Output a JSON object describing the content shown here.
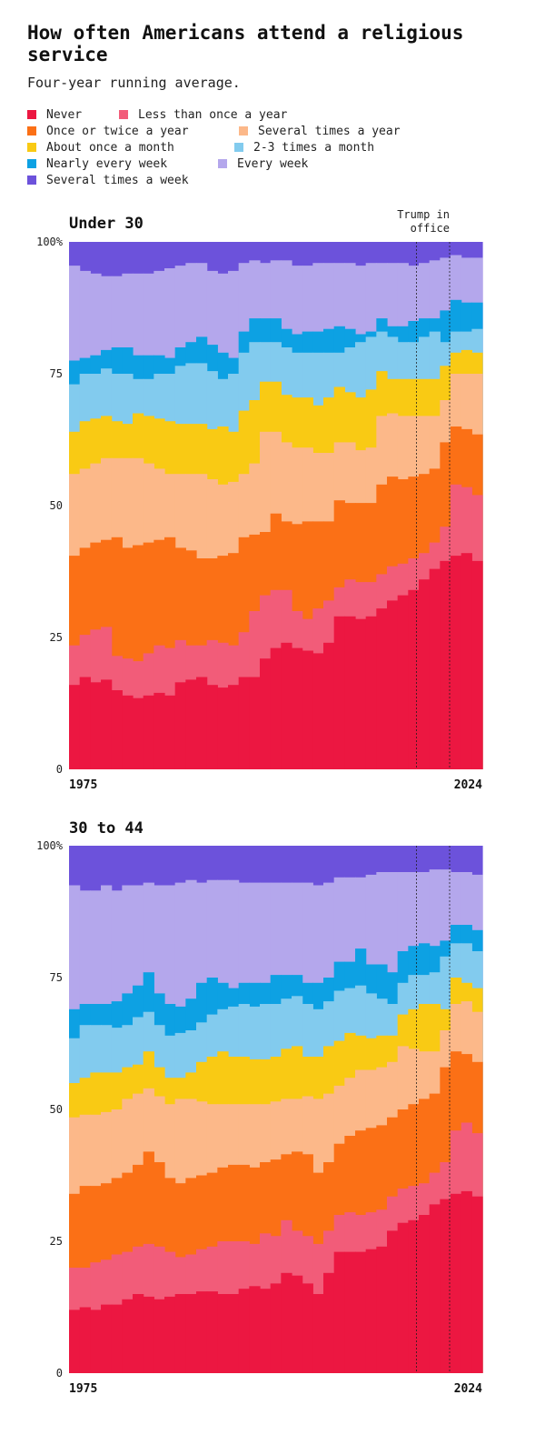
{
  "title": "How often Americans attend a religious service",
  "subtitle": "Four-year running average.",
  "legend": {
    "rows": [
      [
        {
          "label": "Never",
          "color": "#ec1741"
        },
        {
          "label": "Less than once a year",
          "color": "#f25c79"
        }
      ],
      [
        {
          "label": "Once or twice a year",
          "color": "#fb7016"
        },
        {
          "label": "Several times a year",
          "color": "#fcb889"
        }
      ],
      [
        {
          "label": "About once a month",
          "color": "#f9ca14"
        },
        {
          "label": "2-3 times a month",
          "color": "#82cbee"
        }
      ],
      [
        {
          "label": "Nearly every week",
          "color": "#0da1e3"
        },
        {
          "label": "Every week",
          "color": "#b4a7ec"
        }
      ],
      [
        {
          "label": "Several times a week",
          "color": "#6c52db"
        }
      ]
    ]
  },
  "chart_data": [
    {
      "type": "area",
      "stacked": true,
      "step": true,
      "title": "Under 30",
      "x_start_label": "1975",
      "x_end_label": "2024",
      "y_ticks": [
        "0",
        "25",
        "50",
        "75",
        "100%"
      ],
      "ylim": [
        0,
        100
      ],
      "annotation": {
        "label_line1": "Trump in",
        "label_line2": "office"
      },
      "cumulative_series": [
        {
          "name": "Never",
          "color": "#ec1741",
          "values": [
            16,
            17.5,
            16.5,
            17,
            15,
            14,
            13.5,
            14,
            14.5,
            14,
            16.5,
            17,
            17.5,
            16,
            15.5,
            16,
            17.5,
            17.5,
            21,
            23,
            24,
            23,
            22.5,
            22,
            24,
            29,
            29,
            28.5,
            29,
            30.5,
            32,
            33,
            34,
            36,
            38,
            39.5,
            40.5,
            41,
            39.5
          ]
        },
        {
          "name": "Less than once a year",
          "color": "#f25c79",
          "values": [
            23.5,
            25.5,
            26.5,
            27,
            21.5,
            21,
            20.5,
            22,
            23.5,
            23,
            24.5,
            23.5,
            23.5,
            24.5,
            24,
            23.5,
            26,
            30,
            33,
            34,
            34,
            30,
            28.5,
            30.5,
            32,
            34.5,
            36,
            35.5,
            35.5,
            37,
            38.5,
            39,
            40,
            41,
            43,
            46,
            54,
            53.5,
            52
          ]
        },
        {
          "name": "Once or twice a year",
          "color": "#fb7016",
          "values": [
            40.5,
            42,
            43,
            43.5,
            44,
            42,
            42.5,
            43,
            43.5,
            44,
            42,
            41.5,
            40,
            40,
            40.5,
            41,
            44,
            44.5,
            45,
            48.5,
            47,
            46.5,
            47,
            47,
            47,
            51,
            50.5,
            50.5,
            50.5,
            54,
            55.5,
            55,
            55.5,
            56,
            57,
            62,
            65,
            64.5,
            63.5
          ]
        },
        {
          "name": "Several times a year",
          "color": "#fcb889",
          "values": [
            56,
            57,
            58,
            59,
            59,
            59,
            59,
            58,
            57,
            56,
            56,
            56,
            56,
            55,
            54,
            54.5,
            56,
            58,
            64,
            64,
            62,
            61,
            61,
            60,
            60,
            62,
            62,
            60.5,
            61,
            67,
            67.5,
            67,
            67,
            67,
            67,
            70,
            75,
            75,
            75
          ]
        },
        {
          "name": "About once a month",
          "color": "#f9ca14",
          "values": [
            64,
            66,
            66.5,
            67,
            66,
            65.5,
            67.5,
            67,
            66.5,
            66,
            65.5,
            65.5,
            65.5,
            64.5,
            65,
            64,
            68,
            70,
            73.5,
            73.5,
            71,
            70.5,
            70.5,
            69,
            70.5,
            72.5,
            71.5,
            70.5,
            72,
            75.5,
            74,
            74,
            74,
            74,
            74,
            76.5,
            79,
            79.5,
            79
          ]
        },
        {
          "name": "2-3 times a month",
          "color": "#82cbee",
          "values": [
            73,
            75,
            75,
            76,
            75,
            75,
            74,
            74,
            75,
            75,
            76.5,
            77,
            77,
            75.5,
            74,
            75,
            79,
            81,
            81,
            81,
            80,
            79,
            79,
            79,
            79,
            79,
            80,
            81,
            82,
            83,
            82,
            81,
            81,
            82,
            83,
            81,
            83,
            83,
            83.5
          ]
        },
        {
          "name": "Nearly every week",
          "color": "#0da1e3",
          "values": [
            77.5,
            78,
            78.5,
            79.5,
            80,
            80,
            78.5,
            78.5,
            78.5,
            78,
            80,
            81,
            82,
            80.5,
            79,
            78,
            83,
            85.5,
            85.5,
            85.5,
            83.5,
            82.5,
            83,
            83,
            83.5,
            84,
            83.5,
            82.5,
            83,
            85.5,
            84,
            84,
            85,
            85.5,
            85.5,
            87,
            89,
            88.5,
            88.5
          ]
        },
        {
          "name": "Every week",
          "color": "#b4a7ec",
          "values": [
            95.5,
            94.5,
            94,
            93.5,
            93.5,
            94,
            94,
            94,
            94.5,
            95,
            95.5,
            96,
            96,
            94.5,
            94,
            94.5,
            96,
            96.5,
            96,
            96.5,
            96.5,
            95.5,
            95.5,
            96,
            96,
            96,
            96,
            95.5,
            96,
            96,
            96,
            96,
            95.5,
            96,
            96.5,
            97,
            97.5,
            97,
            97
          ]
        },
        {
          "name": "Several times a week",
          "color": "#6c52db",
          "values": [
            100,
            100,
            100,
            100,
            100,
            100,
            100,
            100,
            100,
            100,
            100,
            100,
            100,
            100,
            100,
            100,
            100,
            100,
            100,
            100,
            100,
            100,
            100,
            100,
            100,
            100,
            100,
            100,
            100,
            100,
            100,
            100,
            100,
            100,
            100,
            100,
            100,
            100,
            100
          ]
        }
      ]
    },
    {
      "type": "area",
      "stacked": true,
      "step": true,
      "title": "30 to 44",
      "x_start_label": "1975",
      "x_end_label": "2024",
      "y_ticks": [
        "0",
        "25",
        "50",
        "75",
        "100%"
      ],
      "ylim": [
        0,
        100
      ],
      "cumulative_series": [
        {
          "name": "Never",
          "color": "#ec1741",
          "values": [
            12,
            12.5,
            12,
            13,
            13,
            14,
            15,
            14.5,
            14,
            14.5,
            15,
            15,
            15.5,
            15.5,
            15,
            15,
            16,
            16.5,
            16,
            17,
            19,
            18.5,
            17,
            15,
            19,
            23,
            23,
            23,
            23.5,
            24,
            27,
            28.5,
            29,
            30,
            32,
            33,
            34,
            34.5,
            33.5
          ]
        },
        {
          "name": "Less than once a year",
          "color": "#f25c79",
          "values": [
            20,
            20,
            21,
            21.5,
            22.5,
            23,
            24,
            24.5,
            24,
            23,
            22,
            22.5,
            23.5,
            24,
            25,
            25,
            25,
            24.5,
            26.5,
            26,
            29,
            27,
            26,
            24.5,
            27,
            30,
            30.5,
            30,
            30.5,
            31,
            33.5,
            35,
            35.5,
            36,
            38,
            40,
            46,
            47.5,
            45.5
          ]
        },
        {
          "name": "Once or twice a year",
          "color": "#fb7016",
          "values": [
            34,
            35.5,
            35.5,
            36,
            37,
            38,
            39.5,
            42,
            40,
            37,
            36,
            37,
            37.5,
            38,
            39,
            39.5,
            39.5,
            39,
            40,
            40.5,
            41.5,
            42,
            41.5,
            38,
            40,
            43.5,
            45,
            46,
            46.5,
            47,
            48.5,
            50,
            51,
            52,
            53,
            58,
            61,
            60.5,
            59
          ]
        },
        {
          "name": "Several times a year",
          "color": "#fcb889",
          "values": [
            48.5,
            49,
            49,
            49.5,
            50,
            52,
            53,
            54,
            52.5,
            51,
            52,
            52,
            51.5,
            51,
            51,
            51,
            51,
            51,
            51,
            51.5,
            52,
            52,
            52.5,
            52,
            53,
            54.5,
            56,
            57.5,
            57.5,
            58,
            59,
            62,
            61.5,
            61,
            61,
            65,
            70,
            70.5,
            68.5
          ]
        },
        {
          "name": "About once a month",
          "color": "#f9ca14",
          "values": [
            55,
            56,
            57,
            57,
            57,
            58,
            58.5,
            61,
            58,
            56,
            56,
            57,
            59,
            60,
            61,
            60,
            60,
            59.5,
            59.5,
            60,
            61.5,
            62,
            60,
            60,
            62,
            63,
            64.5,
            64,
            63.5,
            64,
            64,
            68,
            69,
            70,
            70,
            69,
            75,
            74,
            73
          ]
        },
        {
          "name": "2-3 times a month",
          "color": "#82cbee",
          "values": [
            63.5,
            66,
            66,
            66,
            65.5,
            66,
            67.5,
            68.5,
            66,
            64,
            64.5,
            65,
            66.5,
            68,
            69,
            69.5,
            70,
            69.5,
            70,
            70,
            71,
            71.5,
            70,
            69,
            70.5,
            72.5,
            73,
            73.5,
            72,
            71,
            70,
            74,
            75.5,
            75.5,
            76,
            79,
            81.5,
            81.5,
            80
          ]
        },
        {
          "name": "Nearly every week",
          "color": "#0da1e3",
          "values": [
            69,
            70,
            70,
            70,
            70.5,
            72,
            73.5,
            76,
            72,
            70,
            69.5,
            71,
            74,
            75,
            74,
            73,
            74,
            74,
            74,
            75.5,
            75.5,
            75.5,
            74,
            74,
            75,
            78,
            78,
            80.5,
            77.5,
            77.5,
            76,
            80,
            81,
            81.5,
            81,
            82,
            85,
            85,
            84
          ]
        },
        {
          "name": "Every week",
          "color": "#b4a7ec",
          "values": [
            92.5,
            91.5,
            91.5,
            92.5,
            91.5,
            92.5,
            92.5,
            93,
            92.5,
            92.5,
            93,
            93.5,
            93,
            93.5,
            93.5,
            93.5,
            93,
            93,
            93,
            93,
            93,
            93,
            93,
            92.5,
            93,
            94,
            94,
            94,
            94.5,
            95,
            95,
            95,
            95,
            95,
            95.5,
            95.5,
            95,
            95,
            94.5
          ]
        },
        {
          "name": "Several times a week",
          "color": "#6c52db",
          "values": [
            100,
            100,
            100,
            100,
            100,
            100,
            100,
            100,
            100,
            100,
            100,
            100,
            100,
            100,
            100,
            100,
            100,
            100,
            100,
            100,
            100,
            100,
            100,
            100,
            100,
            100,
            100,
            100,
            100,
            100,
            100,
            100,
            100,
            100,
            100,
            100,
            100,
            100,
            100
          ]
        }
      ]
    }
  ]
}
